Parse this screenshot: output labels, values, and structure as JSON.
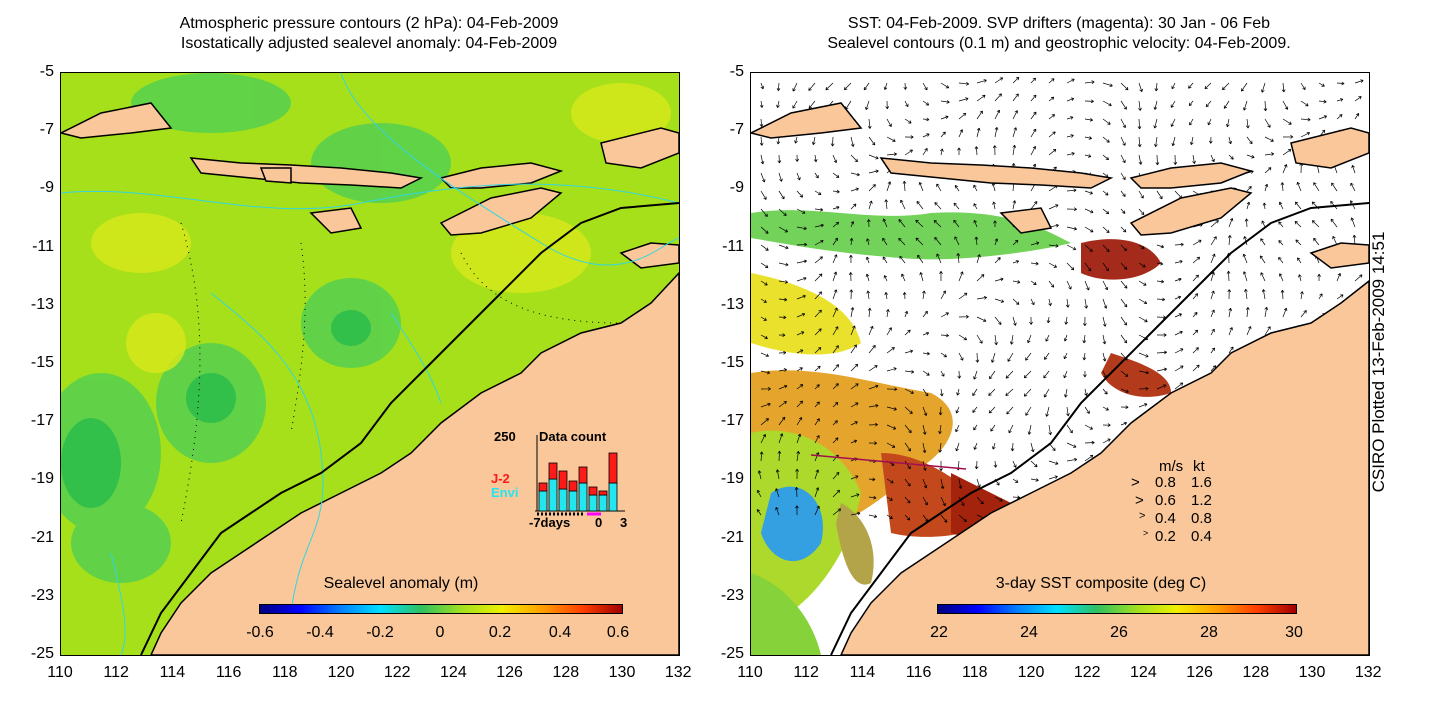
{
  "left": {
    "title_line1": "Atmospheric pressure contours (2 hPa): 04-Feb-2009",
    "title_line2": "Isostatically adjusted sealevel anomaly: 04-Feb-2009",
    "colorbar_label": "Sealevel anomaly (m)",
    "colorbar_ticks": [
      "-0.6",
      "-0.4",
      "-0.2",
      "0",
      "0.2",
      "0.4",
      "0.6"
    ],
    "inset": {
      "title": "Data count",
      "ymax_label": "250",
      "series1": "J-2",
      "series2": "Envi",
      "x_labels": [
        "-7days",
        "0",
        "3"
      ],
      "series1_color": "#ff1a1a",
      "series2_color": "#22e6f0"
    }
  },
  "right": {
    "title_line1": "SST: 04-Feb-2009. SVP drifters (magenta): 30 Jan - 06 Feb",
    "title_line2": "Sealevel contours (0.1 m) and geostrophic velocity: 04-Feb-2009.",
    "colorbar_label": "3-day SST composite (deg C)",
    "colorbar_ticks": [
      "22",
      "24",
      "26",
      "28",
      "30"
    ],
    "velocity_legend": {
      "header_ms": "m/s",
      "header_kt": "kt",
      "rows": [
        {
          "ms": "0.8",
          "kt": "1.6"
        },
        {
          "ms": "0.6",
          "kt": "1.2"
        },
        {
          "ms": "0.4",
          "kt": "0.8"
        },
        {
          "ms": "0.2",
          "kt": "0.4"
        }
      ]
    }
  },
  "axes": {
    "y_ticks": [
      "-5",
      "-7",
      "-9",
      "-11",
      "-13",
      "-15",
      "-17",
      "-19",
      "-21",
      "-23",
      "-25"
    ],
    "x_ticks": [
      "110",
      "112",
      "114",
      "116",
      "118",
      "120",
      "122",
      "124",
      "126",
      "128",
      "130",
      "132"
    ]
  },
  "credit": "CSIRO Plotted 13-Feb-2009 14:51",
  "colors": {
    "land": "#f9c79a",
    "sea_base": "#a6e01a",
    "sea_dark": "#3cc83c",
    "contour": "#33d6e0"
  }
}
